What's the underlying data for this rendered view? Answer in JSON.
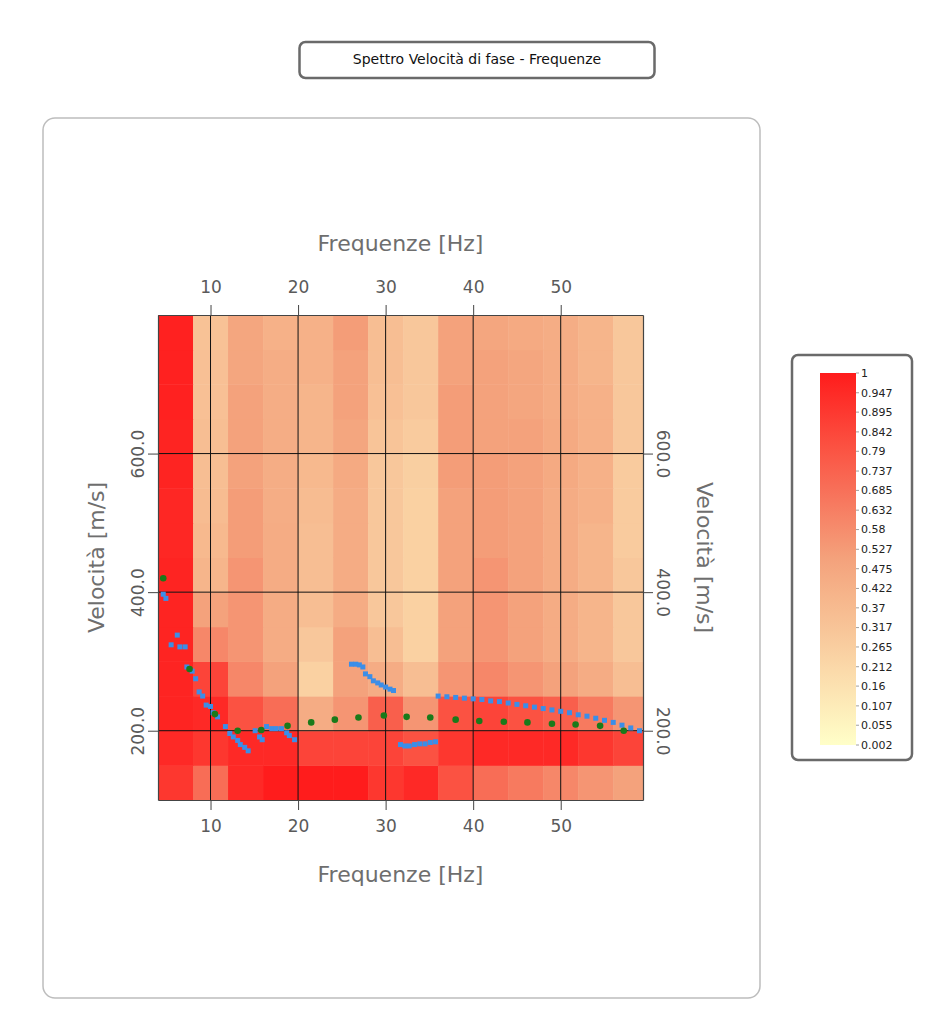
{
  "chart_data": {
    "type": "heatmap",
    "title": "Spettro Velocità di fase - Frequenze",
    "xlabel": "Frequenze [Hz]",
    "ylabel": "Velocità [m/s]",
    "xlim": [
      4,
      59.4
    ],
    "ylim": [
      100,
      800
    ],
    "xticks": [
      10,
      20,
      30,
      40,
      50
    ],
    "yticks": [
      {
        "value": 200,
        "label": "200.0"
      },
      {
        "value": 400,
        "label": "400.0"
      },
      {
        "value": 600,
        "label": "600.0"
      }
    ],
    "grid": true,
    "heatmap": {
      "x": [
        6,
        10,
        14,
        18,
        22,
        26,
        30,
        34,
        38,
        42,
        46,
        50,
        54,
        58
      ],
      "y": [
        125,
        175,
        225,
        275,
        325,
        375,
        425,
        475,
        525,
        575,
        625,
        675,
        725,
        775
      ],
      "z": [
        [
          0.9,
          0.7,
          0.95,
          1,
          1,
          1,
          0.9,
          0.95,
          0.8,
          0.7,
          0.65,
          0.6,
          0.55,
          0.5
        ],
        [
          0.95,
          0.9,
          0.95,
          0.95,
          0.85,
          0.85,
          0.85,
          0.8,
          0.9,
          0.95,
          0.95,
          0.95,
          0.9,
          0.85
        ],
        [
          0.97,
          0.95,
          0.8,
          0.7,
          0.45,
          0.55,
          0.75,
          0.55,
          0.8,
          0.85,
          0.8,
          0.75,
          0.65,
          0.55
        ],
        [
          0.97,
          0.85,
          0.6,
          0.5,
          0.25,
          0.5,
          0.45,
          0.35,
          0.55,
          0.6,
          0.55,
          0.5,
          0.45,
          0.35
        ],
        [
          0.97,
          0.6,
          0.55,
          0.45,
          0.3,
          0.5,
          0.35,
          0.25,
          0.5,
          0.55,
          0.5,
          0.45,
          0.4,
          0.3
        ],
        [
          0.97,
          0.5,
          0.55,
          0.45,
          0.35,
          0.45,
          0.3,
          0.25,
          0.5,
          0.55,
          0.5,
          0.45,
          0.4,
          0.3
        ],
        [
          0.97,
          0.4,
          0.55,
          0.45,
          0.35,
          0.45,
          0.3,
          0.25,
          0.5,
          0.55,
          0.5,
          0.45,
          0.4,
          0.3
        ],
        [
          0.96,
          0.38,
          0.52,
          0.45,
          0.35,
          0.45,
          0.3,
          0.25,
          0.5,
          0.52,
          0.5,
          0.45,
          0.4,
          0.28
        ],
        [
          0.96,
          0.36,
          0.52,
          0.44,
          0.36,
          0.45,
          0.3,
          0.25,
          0.5,
          0.52,
          0.5,
          0.45,
          0.42,
          0.28
        ],
        [
          0.97,
          0.35,
          0.5,
          0.44,
          0.38,
          0.46,
          0.3,
          0.26,
          0.52,
          0.52,
          0.5,
          0.46,
          0.42,
          0.28
        ],
        [
          0.97,
          0.35,
          0.5,
          0.44,
          0.4,
          0.48,
          0.32,
          0.28,
          0.52,
          0.5,
          0.5,
          0.46,
          0.42,
          0.3
        ],
        [
          0.98,
          0.34,
          0.5,
          0.44,
          0.4,
          0.5,
          0.34,
          0.3,
          0.52,
          0.5,
          0.48,
          0.45,
          0.42,
          0.3
        ],
        [
          0.98,
          0.34,
          0.48,
          0.44,
          0.42,
          0.5,
          0.35,
          0.3,
          0.5,
          0.5,
          0.48,
          0.45,
          0.4,
          0.3
        ],
        [
          0.98,
          0.33,
          0.48,
          0.42,
          0.42,
          0.52,
          0.35,
          0.3,
          0.5,
          0.48,
          0.46,
          0.44,
          0.4,
          0.3
        ]
      ]
    },
    "colorbar": {
      "range": [
        0.002,
        1
      ],
      "ticks": [
        1,
        0.947,
        0.895,
        0.842,
        0.79,
        0.737,
        0.685,
        0.632,
        0.58,
        0.527,
        0.475,
        0.422,
        0.37,
        0.317,
        0.265,
        0.212,
        0.16,
        0.107,
        0.055,
        0.002
      ]
    },
    "series": [
      {
        "type": "scatter",
        "marker": "square",
        "color": "#3b8ee8",
        "x": [
          4.6,
          4.9,
          5.5,
          6.2,
          6.5,
          7.1,
          7.3,
          7.9,
          8.3,
          8.7,
          9.1,
          9.5,
          10,
          10.3,
          10.8,
          11.7,
          12.2,
          12.6,
          13.1,
          13.4,
          13.9,
          14.3,
          15.1,
          15.6,
          15.9,
          16.4,
          17,
          17.5,
          18.1,
          18.7,
          19,
          19.6,
          26.1,
          26.6,
          27,
          27.4,
          27.7,
          28.2,
          28.6,
          29.1,
          29.5,
          30,
          30.5,
          30.9,
          31.7,
          32.2,
          32.7,
          33.3,
          33.9,
          34.5,
          35.1,
          35.7,
          36,
          37,
          38,
          39,
          40,
          41,
          42,
          43,
          44,
          45,
          46,
          47,
          48,
          49,
          50,
          51,
          52,
          53,
          54,
          55,
          56,
          57,
          58,
          59
        ],
        "values": [
          397,
          391,
          324,
          338,
          321,
          321,
          292,
          286,
          275,
          256,
          250,
          237,
          235,
          226,
          220,
          206,
          196,
          191,
          186,
          180,
          176,
          171,
          200,
          191,
          187,
          206,
          203,
          203,
          203,
          197,
          193,
          187,
          296,
          296,
          295,
          292,
          282,
          278,
          272,
          269,
          266,
          263,
          260,
          258,
          180,
          178,
          178,
          180,
          181,
          181,
          183,
          184,
          250,
          249,
          248,
          247,
          246,
          245,
          243,
          242,
          240,
          238,
          236,
          234,
          232,
          230,
          228,
          226,
          223,
          221,
          218,
          215,
          212,
          208,
          204,
          200
        ]
      },
      {
        "type": "scatter",
        "marker": "circle",
        "color": "#1a7a1a",
        "x": [
          4.6,
          7.6,
          10.5,
          13.1,
          15.8,
          18.8,
          21.5,
          24.2,
          26.9,
          29.8,
          32.4,
          35.1,
          38,
          40.7,
          43.5,
          46.2,
          49,
          51.7,
          54.5,
          57.2
        ],
        "values": [
          420,
          289,
          224,
          200,
          201,
          207,
          212,
          216,
          219,
          222,
          220,
          219,
          216,
          214,
          213,
          212,
          210,
          209,
          207,
          200
        ]
      }
    ]
  }
}
